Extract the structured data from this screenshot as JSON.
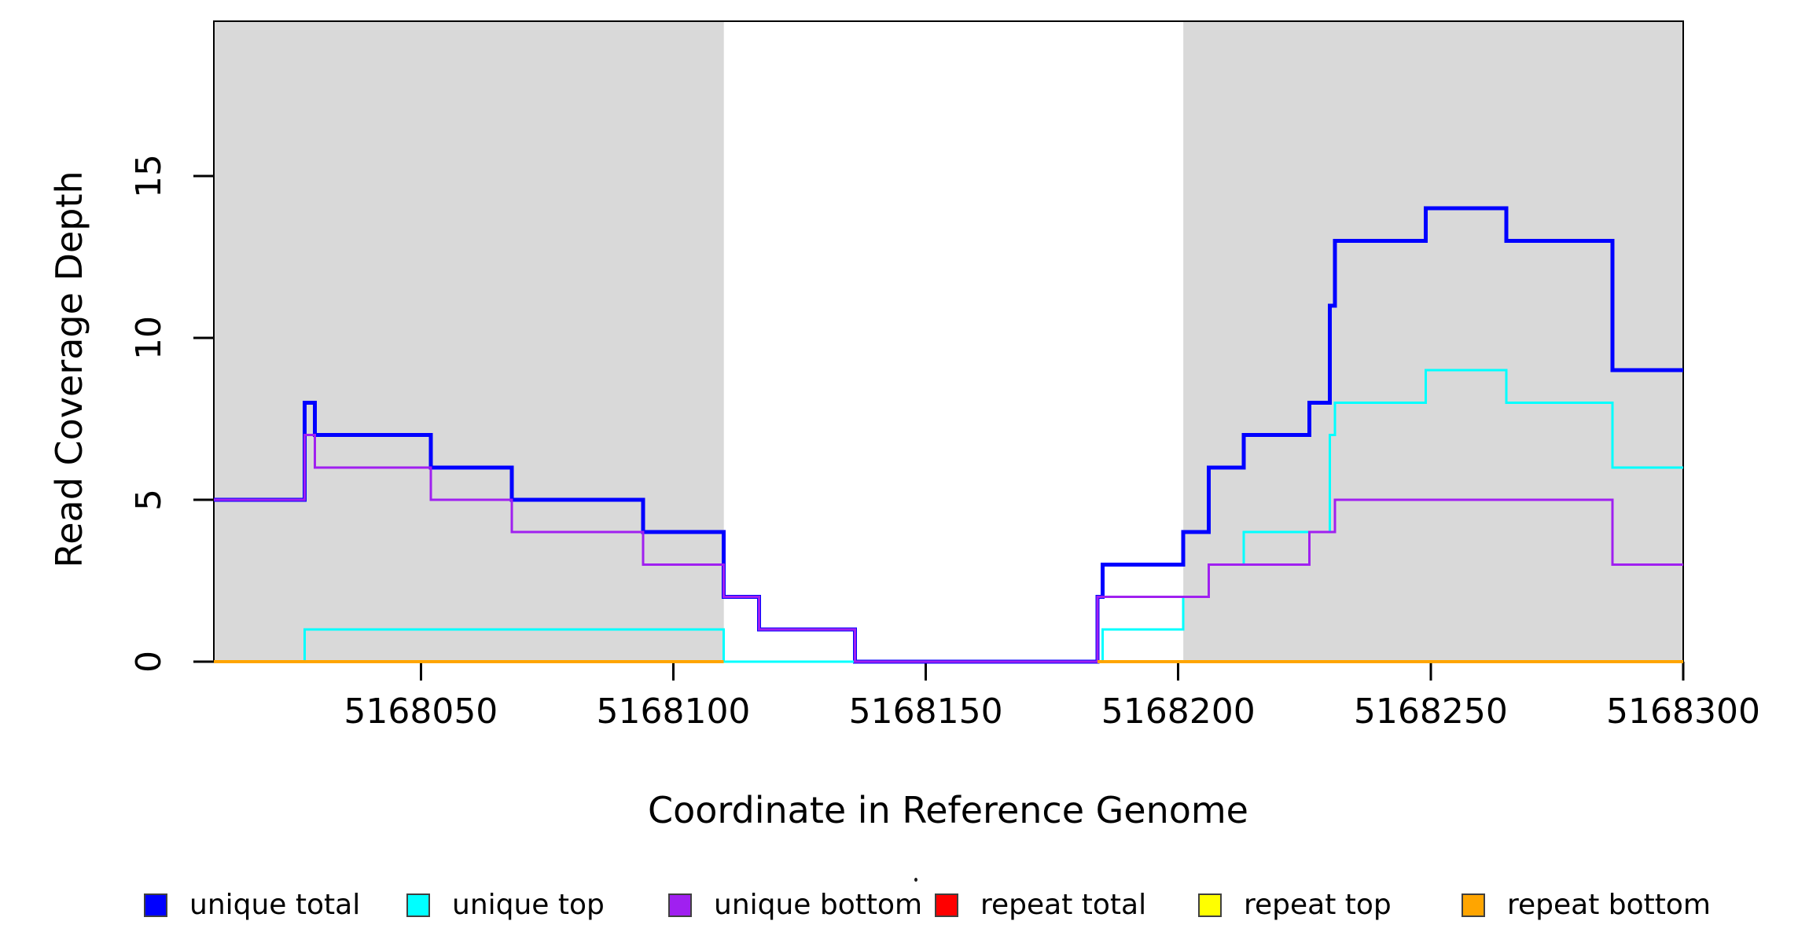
{
  "figure": {
    "background": "#ffffff",
    "axis_color": "#000000"
  },
  "chart_data": {
    "type": "line",
    "step": true,
    "title": "",
    "xlabel": "Coordinate in Reference Genome",
    "ylabel": "Read Coverage Depth",
    "xlim": [
      5168009,
      5168300
    ],
    "ylim": [
      0,
      19.78
    ],
    "x_ticks": [
      5168050,
      5168100,
      5168150,
      5168200,
      5168250,
      5168300
    ],
    "y_ticks": [
      0,
      5,
      10,
      15
    ],
    "grid": false,
    "shade_color": "#d9d9d9",
    "shaded_repeat_regions": [
      [
        5168009,
        5168110
      ],
      [
        5168201,
        5168300
      ]
    ],
    "series": [
      {
        "name": "unique total",
        "color": "#0000ff",
        "lwd": 5,
        "segments": [
          {
            "steps": [
              [
                5168009,
                5
              ],
              [
                5168027,
                8
              ],
              [
                5168029,
                7
              ],
              [
                5168052,
                6
              ],
              [
                5168068,
                5
              ],
              [
                5168094,
                4
              ],
              [
                5168110,
                2
              ],
              [
                5168117,
                1
              ],
              [
                5168136,
                0
              ],
              [
                5168184,
                2
              ],
              [
                5168185,
                3
              ],
              [
                5168201,
                4
              ],
              [
                5168206,
                6
              ],
              [
                5168213,
                7
              ],
              [
                5168226,
                8
              ],
              [
                5168230,
                11
              ],
              [
                5168231,
                13
              ],
              [
                5168249,
                14
              ],
              [
                5168265,
                13
              ],
              [
                5168286,
                9
              ]
            ],
            "end": 5168300
          }
        ]
      },
      {
        "name": "unique top",
        "color": "#00ffff",
        "lwd": 3,
        "segments": [
          {
            "steps": [
              [
                5168009,
                0
              ],
              [
                5168027,
                1
              ],
              [
                5168110,
                0
              ],
              [
                5168185,
                1
              ],
              [
                5168201,
                2
              ],
              [
                5168206,
                3
              ],
              [
                5168213,
                4
              ],
              [
                5168230,
                7
              ],
              [
                5168231,
                8
              ],
              [
                5168249,
                9
              ],
              [
                5168265,
                8
              ],
              [
                5168286,
                6
              ]
            ],
            "end": 5168300
          }
        ]
      },
      {
        "name": "unique bottom",
        "color": "#a020f0",
        "lwd": 3,
        "segments": [
          {
            "steps": [
              [
                5168009,
                5
              ],
              [
                5168027,
                7
              ],
              [
                5168029,
                6
              ],
              [
                5168052,
                5
              ],
              [
                5168068,
                4
              ],
              [
                5168094,
                3
              ],
              [
                5168110,
                2
              ],
              [
                5168117,
                1
              ],
              [
                5168136,
                0
              ],
              [
                5168184,
                2
              ],
              [
                5168206,
                3
              ],
              [
                5168226,
                4
              ],
              [
                5168231,
                5
              ],
              [
                5168286,
                3
              ]
            ],
            "end": 5168300
          }
        ]
      },
      {
        "name": "repeat total",
        "color": "#ff0000",
        "lwd": 3,
        "segments": [
          {
            "steps": [
              [
                5168009,
                0
              ]
            ],
            "end": 5168110
          },
          {
            "steps": [
              [
                5168184,
                0
              ]
            ],
            "end": 5168300
          }
        ]
      },
      {
        "name": "repeat top",
        "color": "#ffff00",
        "lwd": 3,
        "segments": [
          {
            "steps": [
              [
                5168009,
                0
              ]
            ],
            "end": 5168110
          },
          {
            "steps": [
              [
                5168184,
                0
              ]
            ],
            "end": 5168300
          }
        ]
      },
      {
        "name": "repeat bottom",
        "color": "#ffa500",
        "lwd": 4,
        "segments": [
          {
            "steps": [
              [
                5168009,
                0
              ]
            ],
            "end": 5168110
          },
          {
            "steps": [
              [
                5168184,
                0
              ]
            ],
            "end": 5168300
          }
        ]
      }
    ],
    "legend": {
      "position": "bottom",
      "entries": [
        {
          "label": "unique total",
          "color": "#0000ff"
        },
        {
          "label": "unique top",
          "color": "#00ffff"
        },
        {
          "label": "unique bottom",
          "color": "#a020f0"
        },
        {
          "label": "repeat total",
          "color": "#ff0000"
        },
        {
          "label": "repeat top",
          "color": "#ffff00"
        },
        {
          "label": "repeat bottom",
          "color": "#ffa500"
        }
      ]
    }
  }
}
